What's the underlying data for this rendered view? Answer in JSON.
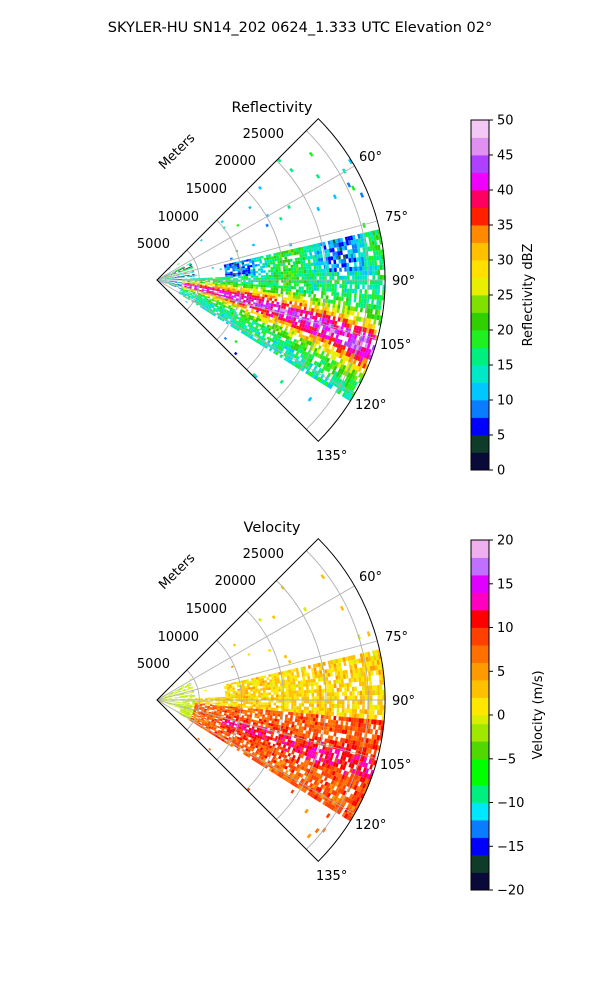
{
  "figure": {
    "suptitle": "SKYLER-HU  SN14_202  0624_1.333 UTC Elevation 02°"
  },
  "chart_data": [
    {
      "type": "heatmap",
      "projection": "polar-sector",
      "title": "Reflectivity",
      "radial_label": "Meters",
      "radial_ticks": [
        5000,
        10000,
        15000,
        20000,
        25000
      ],
      "radial_tick_labels": [
        "5000",
        "10000",
        "15000",
        "20000",
        "25000"
      ],
      "rlim": [
        0,
        27000
      ],
      "azimuth_range_deg": [
        45,
        135
      ],
      "angle_ticks": [
        60,
        75,
        90,
        105,
        120,
        135
      ],
      "angle_tick_labels": [
        "60°",
        "75°",
        "90°",
        "105°",
        "120°",
        "135°"
      ],
      "grid": true,
      "colorbar": {
        "label": "Reflectivity dBZ",
        "range": [
          0,
          50
        ],
        "ticks": [
          0,
          5,
          10,
          15,
          20,
          25,
          30,
          35,
          40,
          45,
          50
        ],
        "tick_labels": [
          "0",
          "5",
          "10",
          "15",
          "20",
          "25",
          "30",
          "35",
          "40",
          "45",
          "50"
        ],
        "colormap": "NWSRef",
        "stops": [
          {
            "v": 0,
            "c": "#0a0a3a"
          },
          {
            "v": 2,
            "c": "#0e3b2a"
          },
          {
            "v": 4,
            "c": "#0f5e3a"
          },
          {
            "v": 5,
            "c": "#0000ff"
          },
          {
            "v": 7.5,
            "c": "#0a7cff"
          },
          {
            "v": 10,
            "c": "#00c8ff"
          },
          {
            "v": 12.5,
            "c": "#00e8c8"
          },
          {
            "v": 15,
            "c": "#00f080"
          },
          {
            "v": 17.5,
            "c": "#20f020"
          },
          {
            "v": 20,
            "c": "#30d000"
          },
          {
            "v": 22.5,
            "c": "#80e000"
          },
          {
            "v": 25,
            "c": "#e8f000"
          },
          {
            "v": 27.5,
            "c": "#ffe000"
          },
          {
            "v": 30,
            "c": "#ffc000"
          },
          {
            "v": 32.5,
            "c": "#ff8a00"
          },
          {
            "v": 35,
            "c": "#ff2000"
          },
          {
            "v": 37.5,
            "c": "#ff0060"
          },
          {
            "v": 40,
            "c": "#f000ff"
          },
          {
            "v": 42.5,
            "c": "#b040ff"
          },
          {
            "v": 45,
            "c": "#e090f0"
          },
          {
            "v": 47.5,
            "c": "#f4c8f4"
          },
          {
            "v": 50,
            "c": "#fff0ff"
          }
        ]
      }
    },
    {
      "type": "heatmap",
      "projection": "polar-sector",
      "title": "Velocity",
      "radial_label": "Meters",
      "radial_ticks": [
        5000,
        10000,
        15000,
        20000,
        25000
      ],
      "radial_tick_labels": [
        "5000",
        "10000",
        "15000",
        "20000",
        "25000"
      ],
      "rlim": [
        0,
        27000
      ],
      "azimuth_range_deg": [
        45,
        135
      ],
      "angle_ticks": [
        60,
        75,
        90,
        105,
        120,
        135
      ],
      "angle_tick_labels": [
        "60°",
        "75°",
        "90°",
        "105°",
        "120°",
        "135°"
      ],
      "grid": true,
      "colorbar": {
        "label": "Velocity (m/s)",
        "range": [
          -20,
          20
        ],
        "ticks": [
          -20,
          -15,
          -10,
          -5,
          0,
          5,
          10,
          15,
          20
        ],
        "tick_labels": [
          "−20",
          "−15",
          "−10",
          "−5",
          "0",
          "5",
          "10",
          "15",
          "20"
        ],
        "colormap": "NWSVel",
        "stops": [
          {
            "v": -20,
            "c": "#0a0a3a"
          },
          {
            "v": -18,
            "c": "#0e3b2a"
          },
          {
            "v": -16,
            "c": "#0000ff"
          },
          {
            "v": -14,
            "c": "#0a7cff"
          },
          {
            "v": -12,
            "c": "#00e8ff"
          },
          {
            "v": -10,
            "c": "#00f080"
          },
          {
            "v": -8,
            "c": "#00ff00"
          },
          {
            "v": -5,
            "c": "#50d800"
          },
          {
            "v": -3,
            "c": "#a0e800"
          },
          {
            "v": -1,
            "c": "#d8f000"
          },
          {
            "v": 0,
            "c": "#ffe800"
          },
          {
            "v": 2,
            "c": "#ffc000"
          },
          {
            "v": 4,
            "c": "#ff9a00"
          },
          {
            "v": 6,
            "c": "#ff7000"
          },
          {
            "v": 8,
            "c": "#ff4000"
          },
          {
            "v": 10,
            "c": "#ff0000"
          },
          {
            "v": 12,
            "c": "#ff00c0"
          },
          {
            "v": 14,
            "c": "#e000ff"
          },
          {
            "v": 16,
            "c": "#c070ff"
          },
          {
            "v": 18,
            "c": "#f0b0f0"
          },
          {
            "v": 20,
            "c": "#fff0ff"
          }
        ]
      }
    }
  ]
}
